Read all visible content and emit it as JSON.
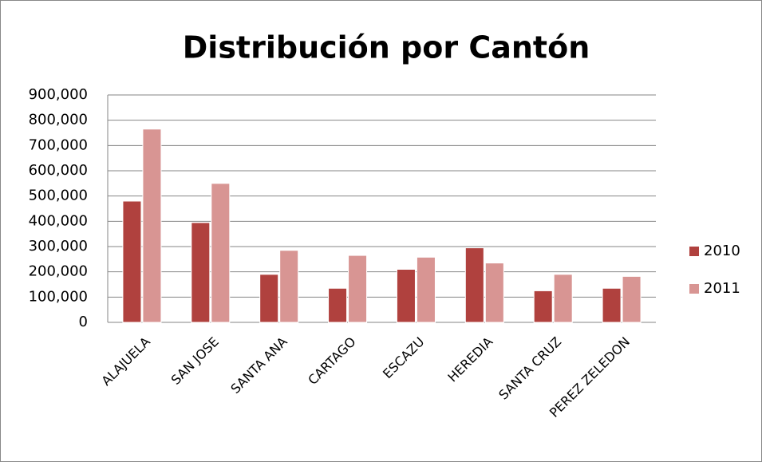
{
  "chart_data": {
    "type": "bar",
    "title": "Distribución por Cantón",
    "categories": [
      "ALAJUELA",
      "SAN JOSE",
      "SANTA ANA",
      "CARTAGO",
      "ESCAZU",
      "HEREDIA",
      "SANTA CRUZ",
      "PEREZ ZELEDON"
    ],
    "series": [
      {
        "name": "2010",
        "color": "#b0413e",
        "values": [
          480000,
          395000,
          190000,
          135000,
          210000,
          295000,
          125000,
          135000
        ]
      },
      {
        "name": "2011",
        "color": "#d89593",
        "values": [
          765000,
          550000,
          285000,
          265000,
          258000,
          235000,
          190000,
          182000
        ]
      }
    ],
    "ylim": [
      0,
      900000
    ],
    "yticks": [
      0,
      {
        "value": 100000,
        "label": "100,000"
      },
      {
        "value": 200000,
        "label": "200,000"
      },
      {
        "value": 300000,
        "label": "300,000"
      },
      {
        "value": 400000,
        "label": "400,000"
      },
      {
        "value": 500000,
        "label": "500,000"
      },
      {
        "value": 600000,
        "label": "600,000"
      },
      {
        "value": 700000,
        "label": "700,000"
      },
      {
        "value": 800000,
        "label": "800,000"
      },
      {
        "value": 900000,
        "label": "900,000"
      }
    ],
    "grid": true,
    "legend": "right"
  }
}
